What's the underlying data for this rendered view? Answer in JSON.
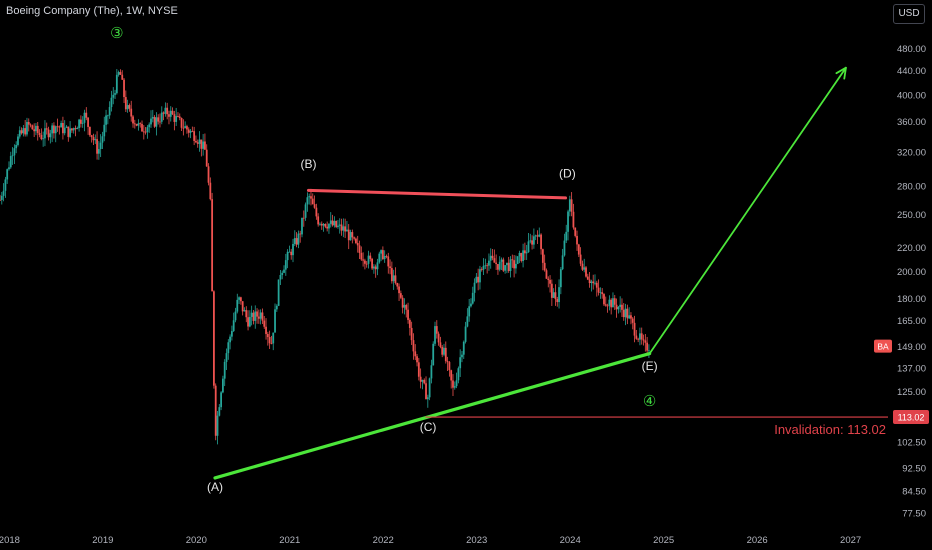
{
  "header": {
    "symbol_title": "Boeing Company (The), 1W, NYSE",
    "currency": "USD"
  },
  "colors": {
    "background": "#000000",
    "candle_up": "#26a69a",
    "candle_down": "#ef5350",
    "support_line": "#4ce63a",
    "resistance_line": "#f0505a",
    "projection_line": "#4ce63a",
    "invalidation": "#e0424a",
    "wave_marker": "#3ed63e",
    "axis_text": "#b2b5be"
  },
  "chart_data": {
    "type": "candlestick",
    "y_scale": "log",
    "ylim": [
      74,
      520
    ],
    "xlim": [
      2017.9,
      2027.4
    ],
    "y_ticks": [
      480,
      440,
      400,
      360,
      320,
      280,
      250,
      220,
      200,
      180,
      165,
      149,
      137,
      125,
      113,
      102.5,
      92.5,
      84.5,
      77.5
    ],
    "y_tick_labels": [
      "480.00",
      "440.00",
      "400.00",
      "360.00",
      "320.00",
      "280.00",
      "250.00",
      "220.00",
      "200.00",
      "180.00",
      "165.00",
      "149.00",
      "137.00",
      "125.00",
      "113.02",
      "102.50",
      "92.50",
      "84.50",
      "77.50"
    ],
    "x_ticks": [
      2018,
      2019,
      2020,
      2021,
      2022,
      2023,
      2024,
      2025,
      2026,
      2027
    ],
    "x_tick_labels": [
      "2018",
      "2019",
      "2020",
      "2021",
      "2022",
      "2023",
      "2024",
      "2025",
      "2026",
      "2027"
    ],
    "price_path": [
      [
        2017.9,
        265
      ],
      [
        2018.05,
        330
      ],
      [
        2018.2,
        355
      ],
      [
        2018.35,
        340
      ],
      [
        2018.5,
        355
      ],
      [
        2018.65,
        345
      ],
      [
        2018.8,
        370
      ],
      [
        2018.95,
        320
      ],
      [
        2019.1,
        395
      ],
      [
        2019.18,
        440
      ],
      [
        2019.25,
        380
      ],
      [
        2019.4,
        350
      ],
      [
        2019.55,
        360
      ],
      [
        2019.7,
        375
      ],
      [
        2019.85,
        355
      ],
      [
        2020.0,
        340
      ],
      [
        2020.1,
        320
      ],
      [
        2020.15,
        260
      ],
      [
        2020.2,
        105
      ],
      [
        2020.3,
        140
      ],
      [
        2020.45,
        180
      ],
      [
        2020.55,
        165
      ],
      [
        2020.7,
        170
      ],
      [
        2020.8,
        150
      ],
      [
        2020.9,
        200
      ],
      [
        2021.0,
        215
      ],
      [
        2021.1,
        230
      ],
      [
        2021.2,
        270
      ],
      [
        2021.3,
        245
      ],
      [
        2021.45,
        240
      ],
      [
        2021.6,
        235
      ],
      [
        2021.75,
        215
      ],
      [
        2021.9,
        205
      ],
      [
        2022.0,
        215
      ],
      [
        2022.1,
        195
      ],
      [
        2022.25,
        170
      ],
      [
        2022.4,
        130
      ],
      [
        2022.48,
        122
      ],
      [
        2022.55,
        160
      ],
      [
        2022.65,
        145
      ],
      [
        2022.75,
        125
      ],
      [
        2022.85,
        150
      ],
      [
        2022.95,
        185
      ],
      [
        2023.1,
        210
      ],
      [
        2023.25,
        205
      ],
      [
        2023.4,
        205
      ],
      [
        2023.55,
        220
      ],
      [
        2023.65,
        235
      ],
      [
        2023.75,
        195
      ],
      [
        2023.85,
        175
      ],
      [
        2023.95,
        230
      ],
      [
        2024.0,
        265
      ],
      [
        2024.08,
        215
      ],
      [
        2024.2,
        195
      ],
      [
        2024.35,
        180
      ],
      [
        2024.5,
        175
      ],
      [
        2024.6,
        170
      ],
      [
        2024.7,
        158
      ],
      [
        2024.8,
        148
      ],
      [
        2024.85,
        150
      ]
    ],
    "trendlines": [
      {
        "name": "resistance",
        "points": [
          [
            2021.2,
            275
          ],
          [
            2023.95,
            267
          ]
        ]
      },
      {
        "name": "support",
        "points": [
          [
            2020.2,
            89
          ],
          [
            2024.85,
            145
          ]
        ]
      },
      {
        "name": "projection",
        "points": [
          [
            2024.85,
            145
          ],
          [
            2026.95,
            445
          ]
        ]
      }
    ],
    "horizontal_levels": [
      {
        "name": "invalidation",
        "from": 2022.45,
        "value": 113.02
      }
    ],
    "annotations": [
      {
        "label": "(A)",
        "x": 2020.2,
        "y": 84.5
      },
      {
        "label": "(B)",
        "x": 2021.2,
        "y": 300
      },
      {
        "label": "(C)",
        "x": 2022.48,
        "y": 107
      },
      {
        "label": "(D)",
        "x": 2023.97,
        "y": 289
      },
      {
        "label": "(E)",
        "x": 2024.85,
        "y": 136
      }
    ],
    "wave_markers": [
      {
        "label": "③",
        "x": 2019.15,
        "y": 500
      },
      {
        "label": "④",
        "x": 2024.85,
        "y": 118
      }
    ],
    "invalidation_label": "Invalidation: 113.02",
    "last_price_tag": "BA",
    "last_price_value": 149,
    "invalidation_tag": "113.02"
  }
}
